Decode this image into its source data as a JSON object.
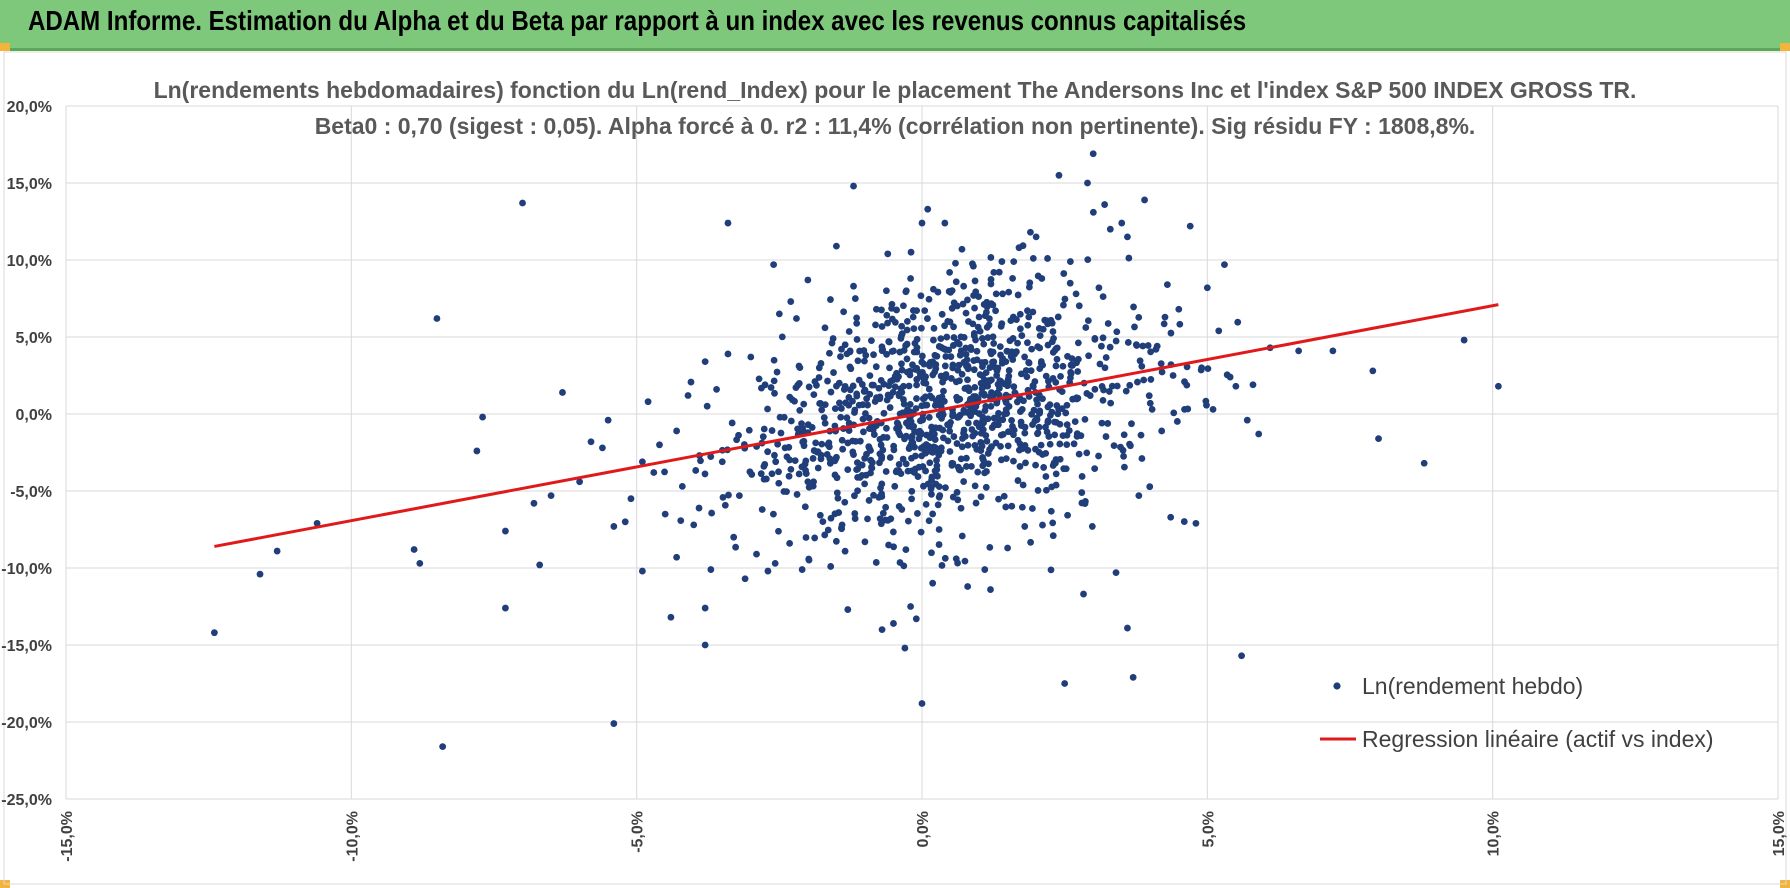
{
  "banner": {
    "title": "ADAM Informe. Estimation du Alpha et du Beta par rapport à un index avec les revenus connus capitalisés",
    "color": "#7dc87b"
  },
  "chart_data": {
    "type": "scatter",
    "title": "Ln(rendements hebdomadaires) fonction du Ln(rend_Index) pour le placement The Andersons Inc et l'index S&P 500 INDEX GROSS TR.",
    "subtitle": "Beta0 : 0,70 (sigest : 0,05).  Alpha forcé à 0. r2 : 11,4% (corrélation non pertinente). Sig résidu FY : 1808,8%.",
    "xlabel": "",
    "ylabel": "",
    "xlim": [
      -0.15,
      0.15
    ],
    "ylim": [
      -0.25,
      0.2
    ],
    "xticks": [
      -0.15,
      -0.1,
      -0.05,
      0.0,
      0.05,
      0.1,
      0.15
    ],
    "yticks": [
      0.2,
      0.15,
      0.1,
      0.05,
      0.0,
      -0.05,
      -0.1,
      -0.15,
      -0.2,
      -0.25
    ],
    "xtick_labels": [
      "-15,0%",
      "-10,0%",
      "-5,0%",
      "0,0%",
      "5,0%",
      "10,0%",
      "15,0%"
    ],
    "ytick_labels": [
      "20,0%",
      "15,0%",
      "10,0%",
      "5,0%",
      "0,0%",
      "-5,0%",
      "-10,0%",
      "-15,0%",
      "-20,0%",
      "-25,0%"
    ],
    "grid": true,
    "legend_position": "bottom-right",
    "series": [
      {
        "name": "Ln(rendement hebdo)",
        "type": "scatter",
        "color": "#1f3e7a",
        "points": [
          [
            -0.124,
            -0.142
          ],
          [
            -0.116,
            -0.104
          ],
          [
            -0.113,
            -0.089
          ],
          [
            -0.106,
            -0.071
          ],
          [
            -0.089,
            -0.088
          ],
          [
            -0.088,
            -0.097
          ],
          [
            -0.085,
            0.062
          ],
          [
            -0.084,
            -0.216
          ],
          [
            -0.078,
            -0.024
          ],
          [
            -0.077,
            -0.002
          ],
          [
            -0.073,
            -0.126
          ],
          [
            -0.073,
            -0.076
          ],
          [
            -0.07,
            0.137
          ],
          [
            -0.068,
            -0.058
          ],
          [
            -0.067,
            -0.098
          ],
          [
            -0.065,
            -0.053
          ],
          [
            -0.063,
            0.014
          ],
          [
            -0.06,
            -0.044
          ],
          [
            -0.058,
            -0.018
          ],
          [
            -0.056,
            -0.022
          ],
          [
            -0.055,
            -0.004
          ],
          [
            -0.054,
            -0.073
          ],
          [
            -0.054,
            -0.201
          ],
          [
            -0.052,
            -0.07
          ],
          [
            -0.051,
            -0.055
          ],
          [
            -0.049,
            -0.031
          ],
          [
            -0.049,
            -0.102
          ],
          [
            -0.048,
            0.008
          ],
          [
            -0.047,
            -0.038
          ],
          [
            -0.046,
            -0.02
          ],
          [
            -0.045,
            -0.065
          ],
          [
            -0.044,
            -0.132
          ],
          [
            -0.043,
            -0.011
          ],
          [
            -0.043,
            -0.093
          ],
          [
            -0.042,
            -0.047
          ],
          [
            -0.041,
            0.012
          ],
          [
            -0.04,
            -0.072
          ],
          [
            -0.039,
            -0.027
          ],
          [
            -0.038,
            -0.15
          ],
          [
            -0.038,
            0.034
          ],
          [
            -0.038,
            -0.126
          ],
          [
            -0.037,
            -0.101
          ],
          [
            -0.036,
            0.016
          ],
          [
            -0.035,
            -0.031
          ],
          [
            -0.034,
            0.039
          ],
          [
            -0.034,
            0.124
          ],
          [
            -0.033,
            -0.08
          ],
          [
            -0.032,
            -0.053
          ],
          [
            -0.031,
            -0.107
          ],
          [
            -0.03,
            0.037
          ],
          [
            -0.029,
            -0.091
          ],
          [
            -0.028,
            -0.062
          ],
          [
            -0.027,
            -0.102
          ],
          [
            -0.026,
            0.097
          ],
          [
            -0.025,
            0.065
          ],
          [
            -0.024,
            -0.022
          ],
          [
            -0.023,
            0.073
          ],
          [
            -0.022,
            0.062
          ],
          [
            -0.021,
            -0.101
          ],
          [
            -0.02,
            0.087
          ],
          [
            -0.019,
            -0.044
          ],
          [
            -0.018,
            0.03
          ],
          [
            -0.017,
            0.056
          ],
          [
            -0.016,
            -0.099
          ],
          [
            -0.015,
            0.109
          ],
          [
            -0.014,
            -0.072
          ],
          [
            -0.013,
            -0.127
          ],
          [
            -0.012,
            0.148
          ],
          [
            -0.012,
            0.083
          ],
          [
            -0.011,
            0.022
          ],
          [
            -0.01,
            -0.083
          ],
          [
            -0.009,
            -0.03
          ],
          [
            -0.008,
            0.068
          ],
          [
            -0.007,
            -0.14
          ],
          [
            -0.006,
            0.104
          ],
          [
            -0.005,
            -0.136
          ],
          [
            -0.005,
            0.041
          ],
          [
            -0.004,
            -0.06
          ],
          [
            -0.003,
            -0.152
          ],
          [
            -0.002,
            0.088
          ],
          [
            -0.002,
            -0.125
          ],
          [
            -0.001,
            -0.133
          ],
          [
            0.0,
            0.124
          ],
          [
            0.0,
            -0.188
          ],
          [
            0.001,
            0.133
          ],
          [
            0.002,
            0.081
          ],
          [
            0.003,
            -0.075
          ],
          [
            0.004,
            0.124
          ],
          [
            0.005,
            0.079
          ],
          [
            0.006,
            -0.094
          ],
          [
            0.007,
            0.107
          ],
          [
            0.008,
            -0.112
          ],
          [
            0.009,
            0.096
          ],
          [
            0.01,
            0.063
          ],
          [
            0.011,
            -0.101
          ],
          [
            0.012,
            -0.114
          ],
          [
            0.013,
            0.078
          ],
          [
            0.014,
            0.099
          ],
          [
            0.015,
            -0.087
          ],
          [
            0.016,
            0.063
          ],
          [
            0.017,
            0.108
          ],
          [
            0.018,
            -0.073
          ],
          [
            0.019,
            0.118
          ],
          [
            0.02,
            0.115
          ],
          [
            0.021,
            0.088
          ],
          [
            0.022,
            0.101
          ],
          [
            0.023,
            -0.079
          ],
          [
            0.024,
            0.155
          ],
          [
            0.025,
            -0.175
          ],
          [
            0.026,
            0.099
          ],
          [
            0.027,
            0.078
          ],
          [
            0.028,
            -0.051
          ],
          [
            0.029,
            0.15
          ],
          [
            0.03,
            0.169
          ],
          [
            0.031,
            0.082
          ],
          [
            0.032,
            0.136
          ],
          [
            0.033,
            0.12
          ],
          [
            0.034,
            -0.103
          ],
          [
            0.035,
            0.124
          ],
          [
            0.036,
            -0.139
          ],
          [
            0.036,
            0.115
          ],
          [
            0.037,
            -0.171
          ],
          [
            0.038,
            -0.053
          ],
          [
            0.039,
            0.139
          ],
          [
            0.04,
            0.007
          ],
          [
            0.041,
            0.042
          ],
          [
            0.042,
            -0.011
          ],
          [
            0.043,
            0.084
          ],
          [
            0.044,
            0.025
          ],
          [
            0.045,
            0.068
          ],
          [
            0.046,
            0.003
          ],
          [
            0.047,
            0.122
          ],
          [
            0.048,
            -0.071
          ],
          [
            0.049,
            0.03
          ],
          [
            0.05,
            0.082
          ],
          [
            0.051,
            0.003
          ],
          [
            0.052,
            0.054
          ],
          [
            0.053,
            0.097
          ],
          [
            0.054,
            0.024
          ],
          [
            0.055,
            0.018
          ],
          [
            0.056,
            -0.157
          ],
          [
            0.057,
            -0.004
          ],
          [
            0.058,
            0.019
          ],
          [
            0.059,
            -0.013
          ],
          [
            0.061,
            0.043
          ],
          [
            0.066,
            0.041
          ],
          [
            0.072,
            0.041
          ],
          [
            0.08,
            -0.016
          ],
          [
            0.079,
            0.028
          ],
          [
            0.088,
            -0.032
          ],
          [
            0.095,
            0.048
          ],
          [
            0.101,
            0.018
          ],
          [
            -0.02,
            -0.044
          ],
          [
            0.002,
            0.048
          ],
          [
            0.046,
            0.021
          ]
        ]
      },
      {
        "name": "Regression linéaire (actif vs index)",
        "type": "line",
        "color": "#e01a1a",
        "points": [
          [
            -0.124,
            -0.086
          ],
          [
            0.101,
            0.071
          ]
        ]
      }
    ]
  }
}
